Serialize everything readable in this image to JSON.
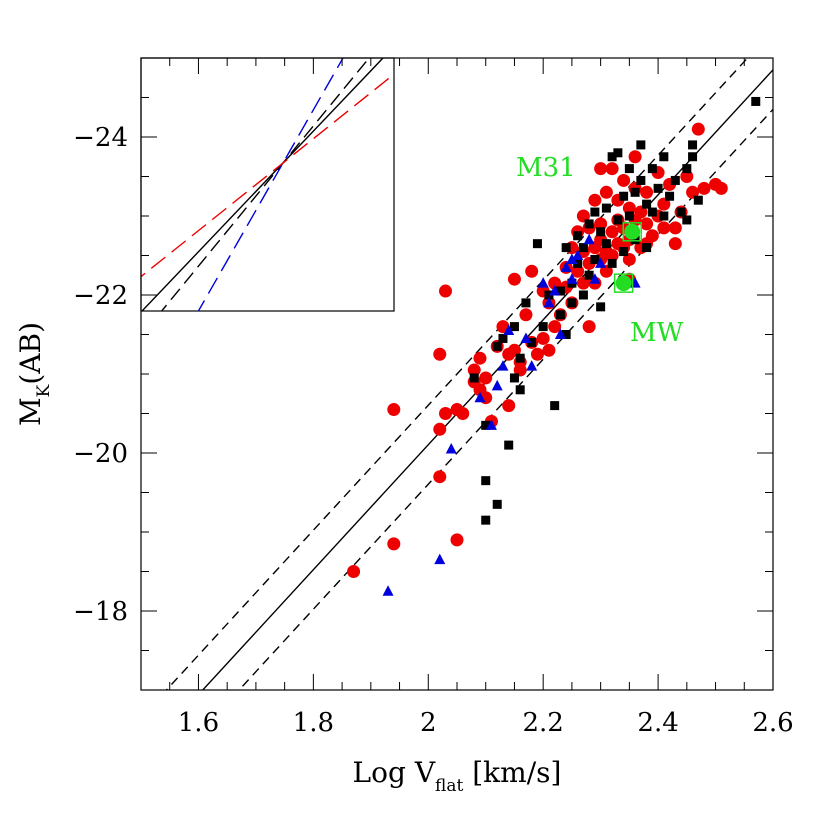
{
  "chart_data": {
    "type": "scatter",
    "title": "",
    "xlabel": {
      "main": "Log V",
      "sub": "flat",
      "unit": " [km/s]"
    },
    "ylabel": {
      "main": "M",
      "sub": "K",
      "rest": "(AB)"
    },
    "xlim": [
      1.5,
      2.6
    ],
    "ylim": [
      -17,
      -25
    ],
    "x_ticks": [
      "1.6",
      "1.8",
      "2",
      "2.2",
      "2.4",
      "2.6"
    ],
    "x_tick_values": [
      1.6,
      1.8,
      2.0,
      2.2,
      2.4,
      2.6
    ],
    "y_ticks": [
      "−24",
      "−22",
      "−20",
      "−18"
    ],
    "y_tick_values": [
      -24,
      -22,
      -20,
      -18
    ],
    "grid": false,
    "legend": "none",
    "annotations": [
      {
        "text": "M31",
        "x": 2.27,
        "y": -23.65,
        "color": "#22dd22"
      },
      {
        "text": "MW",
        "x": 2.35,
        "y": -21.4,
        "color": "#22dd22"
      }
    ],
    "fit_lines": [
      {
        "name": "fit",
        "style": "solid",
        "color": "#000000",
        "x": [
          1.5,
          2.6
        ],
        "y": [
          -16.15,
          -24.85
        ]
      },
      {
        "name": "upper",
        "style": "dashed",
        "color": "#000000",
        "x": [
          1.5,
          2.6
        ],
        "y": [
          -16.65,
          -25.35
        ]
      },
      {
        "name": "lower",
        "style": "dashed",
        "color": "#000000",
        "x": [
          1.5,
          2.6
        ],
        "y": [
          -15.65,
          -24.35
        ]
      }
    ],
    "series": [
      {
        "marker": "circle",
        "color": "#ee0000",
        "points": [
          [
            1.87,
            -18.5
          ],
          [
            1.94,
            -18.85
          ],
          [
            1.94,
            -20.55
          ],
          [
            2.02,
            -21.25
          ],
          [
            2.02,
            -19.7
          ],
          [
            2.03,
            -22.05
          ],
          [
            2.02,
            -20.3
          ],
          [
            2.03,
            -20.5
          ],
          [
            2.05,
            -20.55
          ],
          [
            2.06,
            -20.5
          ],
          [
            2.05,
            -18.9
          ],
          [
            2.08,
            -20.9
          ],
          [
            2.08,
            -21.05
          ],
          [
            2.09,
            -21.2
          ],
          [
            2.09,
            -20.8
          ],
          [
            2.1,
            -20.7
          ],
          [
            2.1,
            -20.95
          ],
          [
            2.11,
            -20.4
          ],
          [
            2.12,
            -21.35
          ],
          [
            2.13,
            -21.6
          ],
          [
            2.14,
            -21.25
          ],
          [
            2.14,
            -20.6
          ],
          [
            2.15,
            -21.3
          ],
          [
            2.16,
            -21.05
          ],
          [
            2.15,
            -22.2
          ],
          [
            2.16,
            -21.15
          ],
          [
            2.17,
            -21.75
          ],
          [
            2.18,
            -21.4
          ],
          [
            2.18,
            -22.3
          ],
          [
            2.19,
            -21.25
          ],
          [
            2.2,
            -21.45
          ],
          [
            2.2,
            -22.05
          ],
          [
            2.21,
            -21.3
          ],
          [
            2.21,
            -21.9
          ],
          [
            2.22,
            -21.6
          ],
          [
            2.22,
            -22.15
          ],
          [
            2.23,
            -21.75
          ],
          [
            2.24,
            -22.1
          ],
          [
            2.24,
            -22.35
          ],
          [
            2.25,
            -21.9
          ],
          [
            2.25,
            -22.6
          ],
          [
            2.26,
            -22.3
          ],
          [
            2.26,
            -22.8
          ],
          [
            2.27,
            -22.15
          ],
          [
            2.27,
            -22.55
          ],
          [
            2.27,
            -23.0
          ],
          [
            2.28,
            -22.4
          ],
          [
            2.28,
            -22.85
          ],
          [
            2.28,
            -21.6
          ],
          [
            2.29,
            -22.6
          ],
          [
            2.29,
            -23.2
          ],
          [
            2.29,
            -22.15
          ],
          [
            2.3,
            -22.45
          ],
          [
            2.3,
            -22.9
          ],
          [
            2.3,
            -22.7
          ],
          [
            2.31,
            -22.55
          ],
          [
            2.31,
            -23.3
          ],
          [
            2.31,
            -22.3
          ],
          [
            2.32,
            -22.8
          ],
          [
            2.32,
            -23.6
          ],
          [
            2.32,
            -22.5
          ],
          [
            2.33,
            -22.95
          ],
          [
            2.33,
            -23.2
          ],
          [
            2.33,
            -22.65
          ],
          [
            2.34,
            -22.6
          ],
          [
            2.34,
            -23.45
          ],
          [
            2.34,
            -22.85
          ],
          [
            2.35,
            -22.7
          ],
          [
            2.35,
            -23.1
          ],
          [
            2.35,
            -22.45
          ],
          [
            2.36,
            -22.95
          ],
          [
            2.36,
            -23.35
          ],
          [
            2.37,
            -22.6
          ],
          [
            2.37,
            -23.05
          ],
          [
            2.38,
            -22.9
          ],
          [
            2.38,
            -22.65
          ],
          [
            2.38,
            -23.3
          ],
          [
            2.39,
            -22.75
          ],
          [
            2.4,
            -23.0
          ],
          [
            2.4,
            -23.55
          ],
          [
            2.41,
            -22.85
          ],
          [
            2.41,
            -23.15
          ],
          [
            2.42,
            -23.4
          ],
          [
            2.43,
            -22.65
          ],
          [
            2.43,
            -22.85
          ],
          [
            2.44,
            -23.05
          ],
          [
            2.45,
            -23.5
          ],
          [
            2.46,
            -23.3
          ],
          [
            2.47,
            -24.1
          ],
          [
            2.48,
            -23.35
          ],
          [
            2.5,
            -23.4
          ],
          [
            2.51,
            -23.35
          ],
          [
            2.36,
            -23.75
          ],
          [
            2.3,
            -23.6
          ],
          [
            2.35,
            -22.2
          ]
        ]
      },
      {
        "marker": "square",
        "color": "#000000",
        "points": [
          [
            2.08,
            -20.95
          ],
          [
            2.1,
            -19.65
          ],
          [
            2.1,
            -19.15
          ],
          [
            2.12,
            -19.35
          ],
          [
            2.1,
            -20.35
          ],
          [
            2.12,
            -21.35
          ],
          [
            2.13,
            -21.45
          ],
          [
            2.14,
            -20.1
          ],
          [
            2.15,
            -21.6
          ],
          [
            2.15,
            -20.95
          ],
          [
            2.16,
            -20.8
          ],
          [
            2.16,
            -21.2
          ],
          [
            2.17,
            -21.9
          ],
          [
            2.18,
            -21.4
          ],
          [
            2.19,
            -22.65
          ],
          [
            2.2,
            -21.6
          ],
          [
            2.21,
            -22.0
          ],
          [
            2.22,
            -20.6
          ],
          [
            2.23,
            -21.75
          ],
          [
            2.23,
            -22.05
          ],
          [
            2.24,
            -22.6
          ],
          [
            2.24,
            -21.5
          ],
          [
            2.25,
            -22.15
          ],
          [
            2.25,
            -21.9
          ],
          [
            2.26,
            -22.4
          ],
          [
            2.26,
            -22.75
          ],
          [
            2.27,
            -22.0
          ],
          [
            2.27,
            -22.6
          ],
          [
            2.28,
            -22.25
          ],
          [
            2.28,
            -22.9
          ],
          [
            2.29,
            -23.05
          ],
          [
            2.29,
            -22.45
          ],
          [
            2.3,
            -22.8
          ],
          [
            2.3,
            -21.85
          ],
          [
            2.31,
            -22.65
          ],
          [
            2.31,
            -23.1
          ],
          [
            2.32,
            -23.75
          ],
          [
            2.32,
            -22.4
          ],
          [
            2.33,
            -23.8
          ],
          [
            2.33,
            -22.95
          ],
          [
            2.34,
            -23.25
          ],
          [
            2.34,
            -22.55
          ],
          [
            2.35,
            -23.6
          ],
          [
            2.35,
            -23.0
          ],
          [
            2.36,
            -23.3
          ],
          [
            2.36,
            -22.7
          ],
          [
            2.37,
            -23.9
          ],
          [
            2.37,
            -23.45
          ],
          [
            2.38,
            -23.15
          ],
          [
            2.38,
            -22.6
          ],
          [
            2.39,
            -23.6
          ],
          [
            2.39,
            -23.05
          ],
          [
            2.4,
            -23.35
          ],
          [
            2.41,
            -23.75
          ],
          [
            2.41,
            -23.0
          ],
          [
            2.42,
            -23.25
          ],
          [
            2.43,
            -23.45
          ],
          [
            2.44,
            -23.05
          ],
          [
            2.45,
            -22.95
          ],
          [
            2.45,
            -23.6
          ],
          [
            2.46,
            -23.75
          ],
          [
            2.46,
            -23.9
          ],
          [
            2.47,
            -23.2
          ],
          [
            2.57,
            -24.45
          ]
        ]
      },
      {
        "marker": "triangle",
        "color": "#0000dd",
        "points": [
          [
            1.93,
            -18.25
          ],
          [
            2.02,
            -18.65
          ],
          [
            2.04,
            -20.05
          ],
          [
            2.09,
            -20.7
          ],
          [
            2.11,
            -20.35
          ],
          [
            2.12,
            -20.85
          ],
          [
            2.13,
            -21.1
          ],
          [
            2.14,
            -21.55
          ],
          [
            2.17,
            -21.45
          ],
          [
            2.18,
            -21.1
          ],
          [
            2.2,
            -22.15
          ],
          [
            2.21,
            -21.9
          ],
          [
            2.22,
            -22.05
          ],
          [
            2.23,
            -21.5
          ],
          [
            2.24,
            -22.35
          ],
          [
            2.25,
            -22.2
          ],
          [
            2.25,
            -22.45
          ],
          [
            2.26,
            -22.5
          ],
          [
            2.28,
            -22.7
          ],
          [
            2.29,
            -22.2
          ],
          [
            2.36,
            -22.15
          ],
          [
            2.3,
            -22.4
          ]
        ]
      }
    ],
    "highlights": [
      {
        "text": "M31",
        "x": 2.355,
        "y": -22.8,
        "color": "#22dd22"
      },
      {
        "text": "MW",
        "x": 2.34,
        "y": -22.15,
        "color": "#22dd22"
      }
    ],
    "inset": {
      "lines": [
        {
          "style": "solid",
          "color": "#000000"
        },
        {
          "style": "dashed",
          "color": "#000000"
        },
        {
          "style": "dashed",
          "color": "#0000dd"
        },
        {
          "style": "dashed",
          "color": "#ee0000"
        }
      ]
    }
  }
}
